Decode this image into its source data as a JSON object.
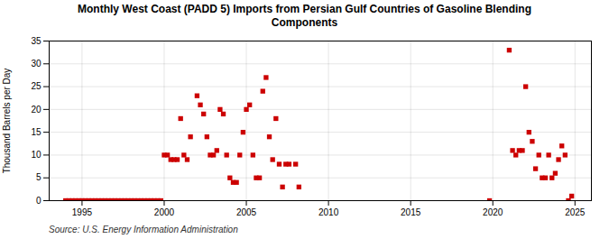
{
  "chart_data": {
    "type": "scatter",
    "title": "Monthly West Coast (PADD 5) Imports from Persian Gulf Countries of Gasoline Blending\nComponents",
    "ylabel": "Thousand Barrels per Day",
    "annotations": [
      "Source: U.S. Energy Information Administration"
    ],
    "color": "#cc0000",
    "marker": "square",
    "grid": true,
    "xlim": [
      1993,
      2026
    ],
    "ylim": [
      0,
      35
    ],
    "xticks": [
      1995,
      2000,
      2005,
      2010,
      2015,
      2020,
      2025
    ],
    "yticks": [
      0,
      5,
      10,
      15,
      20,
      25,
      30,
      35
    ],
    "x": [
      1994.0,
      1994.2,
      1994.4,
      1994.6,
      1994.8,
      1995.0,
      1995.2,
      1995.4,
      1995.6,
      1995.8,
      1996.0,
      1996.2,
      1996.4,
      1996.6,
      1996.8,
      1997.0,
      1997.2,
      1997.4,
      1997.6,
      1997.8,
      1998.0,
      1998.2,
      1998.4,
      1998.6,
      1998.8,
      1999.0,
      1999.2,
      1999.4,
      1999.6,
      1999.8,
      2000.0,
      2000.2,
      2000.4,
      2000.6,
      2000.8,
      2001.0,
      2001.2,
      2001.4,
      2001.6,
      2002.0,
      2002.2,
      2002.4,
      2002.6,
      2002.8,
      2003.0,
      2003.2,
      2003.4,
      2003.6,
      2003.8,
      2004.0,
      2004.2,
      2004.4,
      2004.6,
      2004.8,
      2005.0,
      2005.2,
      2005.4,
      2005.6,
      2005.8,
      2006.0,
      2006.2,
      2006.4,
      2006.6,
      2006.8,
      2007.0,
      2007.2,
      2007.4,
      2007.6,
      2008.0,
      2008.2,
      2019.8,
      2021.0,
      2021.2,
      2021.4,
      2021.6,
      2021.8,
      2022.0,
      2022.2,
      2022.4,
      2022.6,
      2022.8,
      2023.0,
      2023.2,
      2023.4,
      2023.6,
      2023.8,
      2024.0,
      2024.2,
      2024.4,
      2024.6,
      2024.8
    ],
    "values": [
      0,
      0,
      0,
      0,
      0,
      0,
      0,
      0,
      0,
      0,
      0,
      0,
      0,
      0,
      0,
      0,
      0,
      0,
      0,
      0,
      0,
      0,
      0,
      0,
      0,
      0,
      0,
      0,
      0,
      0,
      10,
      10,
      9,
      9,
      9,
      18,
      10,
      9,
      14,
      23,
      21,
      19,
      14,
      10,
      10,
      11,
      20,
      19,
      10,
      5,
      4,
      4,
      10,
      15,
      20,
      21,
      10,
      5,
      5,
      24,
      27,
      14,
      9,
      18,
      8,
      3,
      8,
      8,
      8,
      3,
      0,
      33,
      11,
      10,
      11,
      11,
      25,
      15,
      13,
      7,
      10,
      5,
      5,
      10,
      5,
      6,
      9,
      12,
      10,
      0,
      1
    ]
  }
}
